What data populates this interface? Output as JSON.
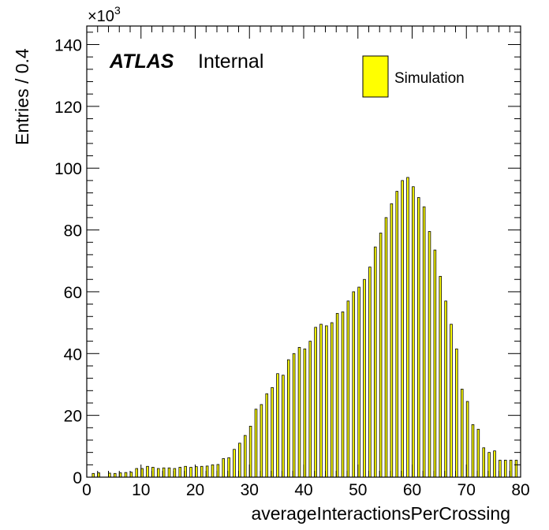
{
  "chart_data": {
    "type": "bar",
    "bin_width": 0.4,
    "x_start": 0,
    "bins_per_unit_step": 2.5,
    "xlabel": "averageInteractionsPerCrossing",
    "ylabel": "Entries / 0.4",
    "y_scale_label": "×10",
    "y_scale_exp": "3",
    "xlim": [
      0,
      80
    ],
    "ylim": [
      0,
      146
    ],
    "x_ticks": [
      "0",
      "10",
      "20",
      "30",
      "40",
      "50",
      "60",
      "70",
      "80"
    ],
    "y_ticks": [
      "0",
      "20",
      "40",
      "60",
      "80",
      "100",
      "120",
      "140"
    ],
    "label_atlas": "ATLAS",
    "label_status": "Internal",
    "series": [
      {
        "name": "Simulation",
        "color": "#ffff00",
        "edge_color": "#000000",
        "points": [
          [
            1,
            1.2
          ],
          [
            2,
            1.4
          ],
          [
            4,
            1.3
          ],
          [
            5,
            1.2
          ],
          [
            6,
            1.4
          ],
          [
            7,
            1.5
          ],
          [
            8,
            1.6
          ],
          [
            9,
            2.8
          ],
          [
            10,
            2.8
          ],
          [
            11,
            3.5
          ],
          [
            12,
            3.2
          ],
          [
            13,
            2.8
          ],
          [
            14,
            3.0
          ],
          [
            15,
            3.0
          ],
          [
            16,
            2.8
          ],
          [
            17,
            3.2
          ],
          [
            18,
            3.5
          ],
          [
            19,
            3.2
          ],
          [
            20,
            3.4
          ],
          [
            21,
            3.5
          ],
          [
            22,
            3.6
          ],
          [
            23,
            4.0
          ],
          [
            24,
            4.1
          ],
          [
            25,
            6.0
          ],
          [
            26,
            6.3
          ],
          [
            27,
            9.0
          ],
          [
            28,
            11.0
          ],
          [
            29,
            13.5
          ],
          [
            30,
            16.5
          ],
          [
            31,
            22.0
          ],
          [
            32,
            23.5
          ],
          [
            33,
            27.0
          ],
          [
            34,
            29.0
          ],
          [
            35,
            33.5
          ],
          [
            36,
            33.0
          ],
          [
            37,
            38.0
          ],
          [
            38,
            40.0
          ],
          [
            39,
            42.0
          ],
          [
            40,
            41.5
          ],
          [
            41,
            44.0
          ],
          [
            42,
            48.5
          ],
          [
            43,
            49.5
          ],
          [
            44,
            49.0
          ],
          [
            45,
            50.0
          ],
          [
            46,
            53.0
          ],
          [
            47,
            53.5
          ],
          [
            48,
            57.0
          ],
          [
            49,
            60.0
          ],
          [
            50,
            61.5
          ],
          [
            51,
            64.0
          ],
          [
            52,
            68.0
          ],
          [
            53,
            74.5
          ],
          [
            54,
            79.0
          ],
          [
            55,
            84.0
          ],
          [
            56,
            88.5
          ],
          [
            57,
            92.5
          ],
          [
            58,
            96.0
          ],
          [
            59,
            97.0
          ],
          [
            60,
            94.0
          ],
          [
            61,
            90.5
          ],
          [
            62,
            87.5
          ],
          [
            63,
            79.5
          ],
          [
            64,
            73.5
          ],
          [
            65,
            65.0
          ],
          [
            66,
            57.0
          ],
          [
            67,
            49.5
          ],
          [
            68,
            41.5
          ],
          [
            69,
            28.5
          ],
          [
            70,
            24.5
          ],
          [
            71,
            17.0
          ],
          [
            72,
            15.5
          ],
          [
            73,
            9.5
          ],
          [
            74,
            8.0
          ],
          [
            75,
            8.5
          ],
          [
            76,
            5.5
          ],
          [
            77,
            5.5
          ],
          [
            78,
            5.5
          ],
          [
            79,
            5.5
          ]
        ]
      }
    ]
  }
}
